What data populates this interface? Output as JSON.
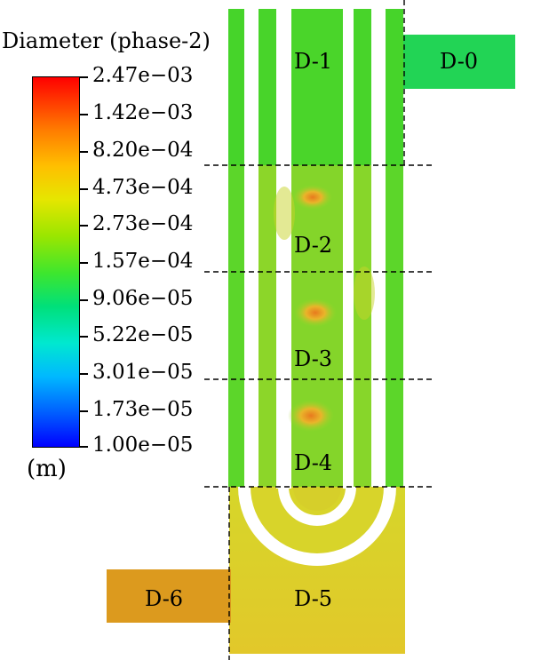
{
  "legend": {
    "title": "Diameter (phase-2)",
    "unit": "(m)",
    "ticks": [
      "2.47e−03",
      "1.42e−03",
      "8.20e−04",
      "4.73e−04",
      "2.73e−04",
      "1.57e−04",
      "9.06e−05",
      "5.22e−05",
      "3.01e−05",
      "1.73e−05",
      "1.00e−05"
    ]
  },
  "zones": [
    {
      "label": "D-0",
      "color": "#22d455"
    },
    {
      "label": "D-1",
      "color": "#4ad82a"
    },
    {
      "label": "D-2",
      "color": "#8ed82a"
    },
    {
      "label": "D-3",
      "color": "#86d42a"
    },
    {
      "label": "D-4",
      "color": "#90d52c"
    },
    {
      "label": "D-5",
      "color": "#d8d22a"
    },
    {
      "label": "D-6",
      "color": "#dc9a1e"
    }
  ]
}
